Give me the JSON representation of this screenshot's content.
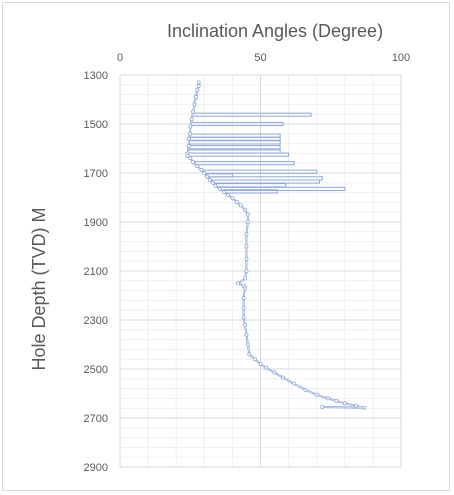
{
  "chart_data": {
    "type": "line",
    "title": "Inclination  Angles (Degree)",
    "ylabel": "Hole Depth (TVD) M",
    "xlabel": "",
    "xlim": [
      0,
      100
    ],
    "ylim": [
      1300,
      2900
    ],
    "y_reversed": true,
    "x_axis_position": "top",
    "x_ticks": [
      0,
      50,
      100
    ],
    "y_ticks": [
      1300,
      1500,
      1700,
      1900,
      2100,
      2300,
      2500,
      2700,
      2900
    ],
    "grid": true,
    "legend": "none",
    "line_color": "#8faadc",
    "grid_major_color": "#d9d9d9",
    "grid_minor_color": "#efefef",
    "series": [
      {
        "points": [
          [
            28,
            1330
          ],
          [
            28,
            1345
          ],
          [
            27.5,
            1360
          ],
          [
            27,
            1390
          ],
          [
            26.5,
            1420
          ],
          [
            26,
            1450
          ],
          [
            25.5,
            1480
          ],
          [
            25,
            1510
          ],
          [
            25,
            1540
          ],
          [
            24.5,
            1560
          ],
          [
            24.5,
            1590
          ],
          [
            24,
            1620
          ],
          [
            24,
            1630
          ],
          [
            25,
            1640
          ],
          [
            26,
            1655
          ],
          [
            27.5,
            1672
          ],
          [
            29,
            1688
          ],
          [
            30,
            1700
          ],
          [
            31,
            1715
          ],
          [
            32,
            1728
          ],
          [
            33,
            1740
          ],
          [
            34,
            1752
          ],
          [
            35.5,
            1765
          ],
          [
            37,
            1778
          ],
          [
            38.5,
            1790
          ],
          [
            40,
            1803
          ],
          [
            41.5,
            1818
          ],
          [
            43,
            1832
          ],
          [
            44.5,
            1850
          ],
          [
            45.5,
            1870
          ],
          [
            45.5,
            1900
          ],
          [
            45,
            1950
          ],
          [
            45,
            2000
          ],
          [
            45,
            2050
          ],
          [
            45,
            2100
          ],
          [
            44.5,
            2130
          ],
          [
            42,
            2150
          ],
          [
            44,
            2160
          ],
          [
            44.5,
            2170
          ],
          [
            44,
            2210
          ],
          [
            44,
            2250
          ],
          [
            44,
            2290
          ],
          [
            44.5,
            2320
          ],
          [
            45,
            2360
          ],
          [
            45.5,
            2400
          ],
          [
            46,
            2440
          ],
          [
            48,
            2460
          ],
          [
            50,
            2480
          ],
          [
            52,
            2495
          ],
          [
            55,
            2515
          ],
          [
            58,
            2535
          ],
          [
            62,
            2560
          ],
          [
            66,
            2585
          ],
          [
            70,
            2605
          ],
          [
            74,
            2620
          ],
          [
            77,
            2630
          ],
          [
            80,
            2640
          ],
          [
            84,
            2650
          ],
          [
            87,
            2658
          ],
          [
            72,
            2655
          ]
        ]
      }
    ],
    "spikes": [
      [
        1462,
        68
      ],
      [
        1500,
        58
      ],
      [
        1548,
        57
      ],
      [
        1560,
        57
      ],
      [
        1575,
        57
      ],
      [
        1595,
        57
      ],
      [
        1612,
        57
      ],
      [
        1625,
        60
      ],
      [
        1660,
        62
      ],
      [
        1695,
        70
      ],
      [
        1710,
        40
      ],
      [
        1722,
        72
      ],
      [
        1735,
        71
      ],
      [
        1750,
        59
      ],
      [
        1765,
        80
      ],
      [
        1775,
        56
      ]
    ]
  }
}
